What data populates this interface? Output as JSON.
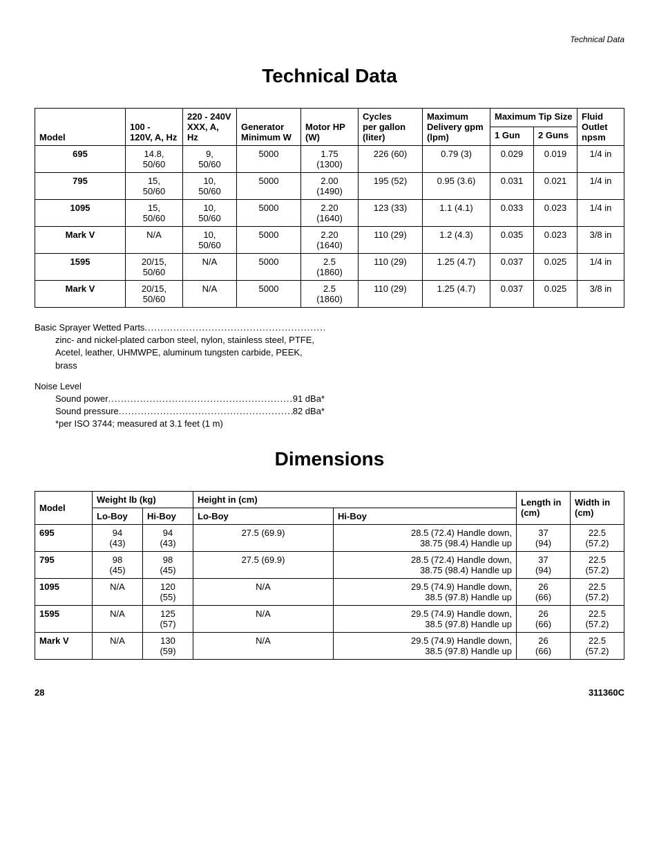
{
  "header_right": "Technical Data",
  "title1": "Technical Data",
  "table1": {
    "headers": {
      "model": "Model",
      "v100_top": "100 -",
      "v100_bot": "120V, A, Hz",
      "v220_top": "220 - 240V",
      "v220_bot": "XXX, A, Hz",
      "gen_top": "Generator",
      "gen_bot": "Minimum W",
      "motor": "Motor HP (W)",
      "cycles_top": "Cycles",
      "cycles_bot": "per gallon (liter)",
      "maxdel_top": "Maximum",
      "maxdel_bot": "Delivery gpm (lpm)",
      "tip_top": "Maximum Tip Size",
      "gun1": "1 Gun",
      "gun2": "2 Guns",
      "fluid_top": "Fluid",
      "fluid_bot": "Outlet npsm"
    },
    "rows": [
      {
        "model": "695",
        "v100": "14.8, 50/60",
        "v220": "9, 50/60",
        "gen": "5000",
        "motor": "1.75 (1300)",
        "cycles": "226 (60)",
        "del": "0.79 (3)",
        "g1": "0.029",
        "g2": "0.019",
        "fluid": "1/4 in"
      },
      {
        "model": "795",
        "v100": "15, 50/60",
        "v220": "10, 50/60",
        "gen": "5000",
        "motor": "2.00 (1490)",
        "cycles": "195 (52)",
        "del": "0.95 (3.6)",
        "g1": "0.031",
        "g2": "0.021",
        "fluid": "1/4 in"
      },
      {
        "model": "1095",
        "v100": "15, 50/60",
        "v220": "10, 50/60",
        "gen": "5000",
        "motor": "2.20 (1640)",
        "cycles": "123 (33)",
        "del": "1.1 (4.1)",
        "g1": "0.033",
        "g2": "0.023",
        "fluid": "1/4 in"
      },
      {
        "model": "Mark V",
        "v100": "N/A",
        "v220": "10, 50/60",
        "gen": "5000",
        "motor": "2.20 (1640)",
        "cycles": "110 (29)",
        "del": "1.2 (4.3)",
        "g1": "0.035",
        "g2": "0.023",
        "fluid": "3/8 in"
      },
      {
        "model": "1595",
        "v100": "20/15, 50/60",
        "v220": "N/A",
        "gen": "5000",
        "motor": "2.5 (1860)",
        "cycles": "110 (29)",
        "del": "1.25 (4.7)",
        "g1": "0.037",
        "g2": "0.025",
        "fluid": "1/4 in"
      },
      {
        "model": "Mark V",
        "v100": "20/15, 50/60",
        "v220": "N/A",
        "gen": "5000",
        "motor": "2.5 (1860)",
        "cycles": "110 (29)",
        "del": "1.25 (4.7)",
        "g1": "0.037",
        "g2": "0.025",
        "fluid": "3/8 in"
      }
    ]
  },
  "notes": {
    "wetted_label": "Basic Sprayer Wetted Parts",
    "wetted_body": "zinc- and nickel-plated carbon steel, nylon, stainless steel, PTFE, Acetel, leather, UHMWPE, aluminum tungsten carbide, PEEK, brass",
    "noise_label": "Noise Level",
    "sound_power_label": "Sound power",
    "sound_power_val": "91 dBa*",
    "sound_pressure_label": "Sound pressure",
    "sound_pressure_val": "82 dBa*",
    "iso_note": "*per ISO 3744; measured at 3.1 feet (1 m)"
  },
  "title2": "Dimensions",
  "table2": {
    "headers": {
      "model": "Model",
      "weight": "Weight lb (kg)",
      "loboy_w": "Lo-Boy",
      "hiboy_w": "Hi-Boy",
      "height": "Height in (cm)",
      "loboy_h": "Lo-Boy",
      "hiboy_h": "Hi-Boy",
      "length": "Length in (cm)",
      "width": "Width in (cm)"
    },
    "rows": [
      {
        "model": "695",
        "lw": "94 (43)",
        "hw": "94 (43)",
        "lh": "27.5 (69.9)",
        "hh": "28.5 (72.4) Handle down, 38.75 (98.4) Handle up",
        "len": "37 (94)",
        "wid": "22.5 (57.2)"
      },
      {
        "model": "795",
        "lw": "98 (45)",
        "hw": "98 (45)",
        "lh": "27.5 (69.9)",
        "hh": "28.5 (72.4) Handle down, 38.75 (98.4) Handle up",
        "len": "37 (94)",
        "wid": "22.5 (57.2)"
      },
      {
        "model": "1095",
        "lw": "N/A",
        "hw": "120 (55)",
        "lh": "N/A",
        "hh": "29.5 (74.9) Handle down, 38.5 (97.8) Handle up",
        "len": "26 (66)",
        "wid": "22.5 (57.2)"
      },
      {
        "model": "1595",
        "lw": "N/A",
        "hw": "125 (57)",
        "lh": "N/A",
        "hh": "29.5 (74.9) Handle down, 38.5 (97.8) Handle up",
        "len": "26 (66)",
        "wid": "22.5 (57.2)"
      },
      {
        "model": "Mark V",
        "lw": "N/A",
        "hw": "130 (59)",
        "lh": "N/A",
        "hh": "29.5 (74.9) Handle down, 38.5 (97.8) Handle up",
        "len": "26 (66)",
        "wid": "22.5 (57.2)"
      }
    ]
  },
  "footer": {
    "page": "28",
    "doc": "311360C"
  }
}
